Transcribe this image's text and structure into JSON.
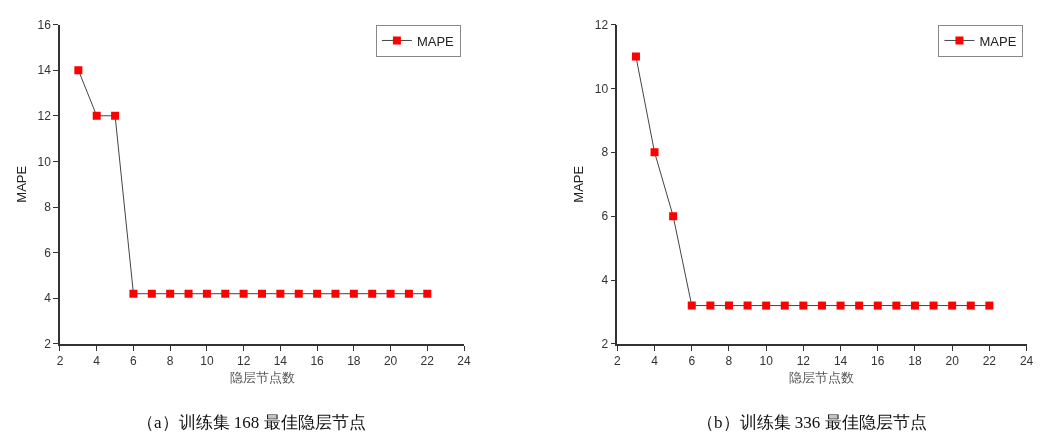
{
  "chart_data": [
    {
      "type": "line",
      "xlabel": "隐层节点数",
      "ylabel": "MAPE",
      "x": [
        3,
        4,
        5,
        6,
        7,
        8,
        9,
        10,
        11,
        12,
        13,
        14,
        15,
        16,
        17,
        18,
        19,
        20,
        21,
        22
      ],
      "series": [
        {
          "name": "MAPE",
          "color": "#ff0000",
          "values": [
            14,
            12,
            12,
            4.2,
            4.2,
            4.2,
            4.2,
            4.2,
            4.2,
            4.2,
            4.2,
            4.2,
            4.2,
            4.2,
            4.2,
            4.2,
            4.2,
            4.2,
            4.2,
            4.2
          ]
        }
      ],
      "xlim": [
        2,
        24
      ],
      "xticks": [
        2,
        4,
        6,
        8,
        10,
        12,
        14,
        16,
        18,
        20,
        22,
        24
      ],
      "ylim": [
        2,
        16
      ],
      "yticks": [
        2,
        4,
        6,
        8,
        10,
        12,
        14,
        16
      ],
      "marker": "square",
      "legend": "top right",
      "annotations": [
        "（a）训练集 168 最佳隐层节点"
      ]
    },
    {
      "type": "line",
      "xlabel": "隐层节点数",
      "ylabel": "MAPE",
      "x": [
        3,
        4,
        5,
        6,
        7,
        8,
        9,
        10,
        11,
        12,
        13,
        14,
        15,
        16,
        17,
        18,
        19,
        20,
        21,
        22
      ],
      "series": [
        {
          "name": "MAPE",
          "color": "#ff0000",
          "values": [
            11,
            8,
            6,
            3.2,
            3.2,
            3.2,
            3.2,
            3.2,
            3.2,
            3.2,
            3.2,
            3.2,
            3.2,
            3.2,
            3.2,
            3.2,
            3.2,
            3.2,
            3.2,
            3.2
          ]
        }
      ],
      "xlim": [
        2,
        24
      ],
      "xticks": [
        2,
        4,
        6,
        8,
        10,
        12,
        14,
        16,
        18,
        20,
        22,
        24
      ],
      "ylim": [
        2,
        12
      ],
      "yticks": [
        2,
        4,
        6,
        8,
        10,
        12
      ],
      "marker": "square",
      "legend": "top right",
      "annotations": [
        "（b）训练集 336 最佳隐层节点"
      ]
    }
  ]
}
